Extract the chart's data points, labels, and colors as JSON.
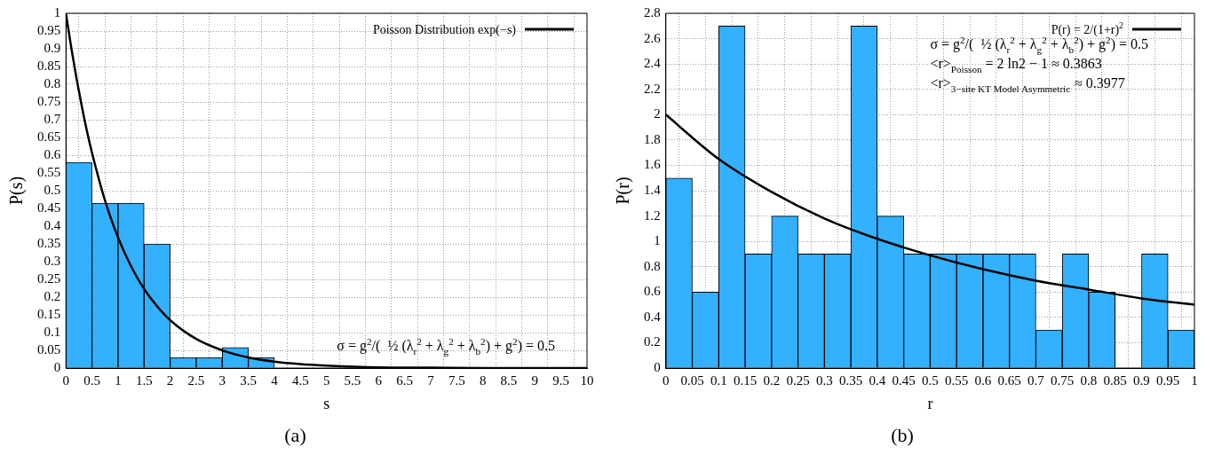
{
  "chart_data": [
    {
      "type": "histogram",
      "title": "(a)",
      "xlabel": "s",
      "ylabel": "P(s)",
      "bins": [
        0,
        0.5,
        1,
        1.5,
        2,
        2.5,
        3,
        3.5,
        4
      ],
      "values": [
        0.58,
        0.465,
        0.465,
        0.35,
        0.03,
        0.03,
        0.058,
        0.03
      ],
      "color": "#33b1ff",
      "series": [
        {
          "type": "line",
          "name": "Poisson Distribution exp(−s)",
          "color": "#000000",
          "x": [
            0,
            0.1,
            0.2,
            0.3,
            0.4,
            0.5,
            0.75,
            1,
            1.25,
            1.5,
            1.75,
            2,
            2.5,
            3,
            3.5,
            4,
            4.5,
            5,
            6,
            7,
            8,
            9,
            10
          ],
          "values": [
            1,
            0.905,
            0.819,
            0.741,
            0.67,
            0.607,
            0.472,
            0.368,
            0.287,
            0.223,
            0.174,
            0.135,
            0.082,
            0.05,
            0.03,
            0.018,
            0.011,
            0.007,
            0.002,
            0.001,
            0,
            0,
            0
          ]
        }
      ],
      "xlim": [
        0,
        10
      ],
      "xticks": [
        0,
        0.5,
        1,
        1.5,
        2,
        2.5,
        3,
        3.5,
        4,
        4.5,
        5,
        5.5,
        6,
        6.5,
        7,
        7.5,
        8,
        8.5,
        9,
        9.5,
        10
      ],
      "ylim": [
        0,
        1
      ],
      "yticks": [
        0,
        0.05,
        0.1,
        0.15,
        0.2,
        0.25,
        0.3,
        0.35,
        0.4,
        0.45,
        0.5,
        0.55,
        0.6,
        0.65,
        0.7,
        0.75,
        0.8,
        0.85,
        0.9,
        0.95,
        1
      ],
      "annotations": [
        "σ = g$^{2}$/(  ½ (λ$_{r}$$^{2}$ + λ$_{g}$$^{2}$ + λ$_{b}$$^{2}$) + g$^{2}$) = 0.5"
      ],
      "grid": true,
      "legend": "top right",
      "marker": "none",
      "line_style": "solid"
    },
    {
      "type": "histogram",
      "title": "(b)",
      "xlabel": "r",
      "ylabel": "P(r)",
      "bins": [
        0,
        0.05,
        0.1,
        0.15,
        0.2,
        0.25,
        0.3,
        0.35,
        0.4,
        0.45,
        0.5,
        0.55,
        0.6,
        0.65,
        0.7,
        0.75,
        0.8,
        0.85,
        0.9,
        0.95,
        1
      ],
      "values": [
        1.5,
        0.6,
        2.7,
        0.9,
        1.2,
        0.9,
        0.9,
        2.7,
        1.2,
        0.9,
        0.9,
        0.9,
        0.9,
        0.9,
        0.3,
        0.9,
        0.6,
        0,
        0.9,
        0.3
      ],
      "color": "#33b1ff",
      "series": [
        {
          "type": "line",
          "name": "P(r) = 2/(1+r)$^{2}$",
          "color": "#000000",
          "x": [
            0,
            0.1,
            0.2,
            0.3,
            0.4,
            0.5,
            0.6,
            0.7,
            0.8,
            0.9,
            1
          ],
          "values": [
            2,
            1.65,
            1.39,
            1.18,
            1.02,
            0.89,
            0.78,
            0.69,
            0.62,
            0.55,
            0.5
          ]
        }
      ],
      "xlim": [
        0,
        1
      ],
      "xticks": [
        0,
        0.05,
        0.1,
        0.15,
        0.2,
        0.25,
        0.3,
        0.35,
        0.4,
        0.45,
        0.5,
        0.55,
        0.6,
        0.65,
        0.7,
        0.75,
        0.8,
        0.85,
        0.9,
        0.95,
        1
      ],
      "ylim": [
        0,
        2.8
      ],
      "yticks": [
        0,
        0.2,
        0.4,
        0.6,
        0.8,
        1,
        1.2,
        1.4,
        1.6,
        1.8,
        2,
        2.2,
        2.4,
        2.6,
        2.8
      ],
      "annotations": [
        "σ = g$^{2}$/(  ½ (λ$_{r}$$^{2}$ + λ$_{g}$$^{2}$ + λ$_{b}$$^{2}$) + g$^{2}$) = 0.5",
        "<r>$_{Poisson}$ = 2 ln2 − 1 ≈ 0.3863",
        "<r>$_{3−site KT Model Asymmetric}$ ≈ 0.3977"
      ],
      "grid": true,
      "legend": "top right",
      "marker": "none",
      "line_style": "solid"
    }
  ]
}
